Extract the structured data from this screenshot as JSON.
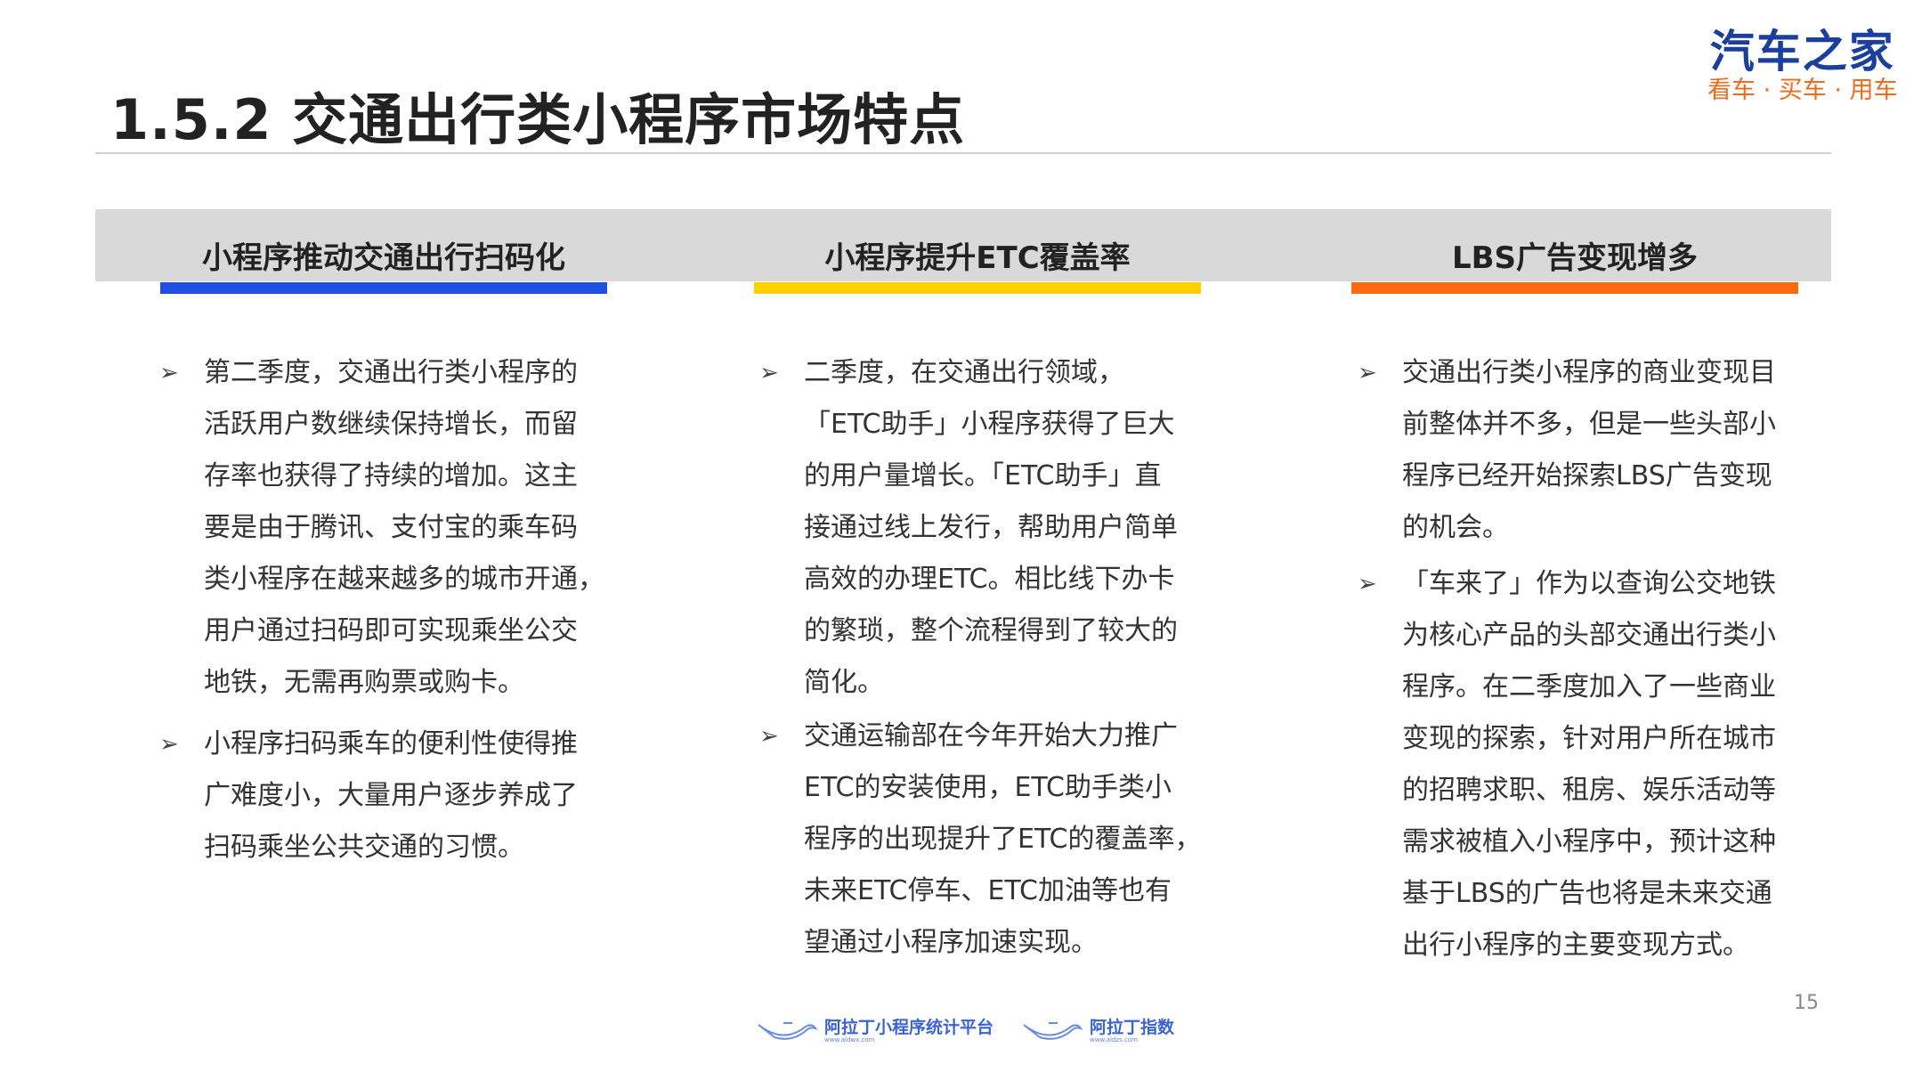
{
  "title": "1.5.2 交通出行类小程序市场特点",
  "logo": {
    "main": "汽车之家",
    "sub": "看车 · 买车 · 用车"
  },
  "columns": [
    {
      "heading": "小程序推动交通出行扫码化",
      "accent": "#1e4fe0",
      "bullets": [
        {
          "lines": [
            "第二季度，交通出行类小程序的",
            "活跃用户数继续保持增长，而留",
            "存率也获得了持续的增加。这主",
            "要是由于腾讯、支付宝的乘车码",
            "类小程序在越来越多的城市开通，",
            "用户通过扫码即可实现乘坐公交",
            "地铁，无需再购票或购卡。"
          ]
        },
        {
          "lines": [
            "小程序扫码乘车的便利性使得推",
            "广难度小，大量用户逐步养成了",
            "扫码乘坐公共交通的习惯。"
          ]
        }
      ]
    },
    {
      "heading": "小程序提升ETC覆盖率",
      "accent": "#ffd000",
      "bullets": [
        {
          "lines": [
            "二季度，在交通出行领域，",
            "「ETC助手」小程序获得了巨大",
            "的用户量增长。「ETC助手」直",
            "接通过线上发行，帮助用户简单",
            "高效的办理ETC。相比线下办卡",
            "的繁琐，整个流程得到了较大的",
            "简化。"
          ]
        },
        {
          "lines": [
            "交通运输部在今年开始大力推广",
            "ETC的安装使用，ETC助手类小",
            "程序的出现提升了ETC的覆盖率，",
            "未来ETC停车、ETC加油等也有",
            "望通过小程序加速实现。"
          ]
        }
      ]
    },
    {
      "heading": "LBS广告变现增多",
      "accent": "#ff6a10",
      "bullets": [
        {
          "lines": [
            "交通出行类小程序的商业变现目",
            "前整体并不多，但是一些头部小",
            "程序已经开始探索LBS广告变现",
            "的机会。"
          ]
        },
        {
          "lines": [
            "「车来了」作为以查询公交地铁",
            "为核心产品的头部交通出行类小",
            "程序。在二季度加入了一些商业",
            "变现的探索，针对用户所在城市",
            "的招聘求职、租房、娱乐活动等",
            "需求被植入小程序中，预计这种",
            "基于LBS的广告也将是未来交通",
            "出行小程序的主要变现方式。"
          ]
        }
      ]
    }
  ],
  "bullet_glyph": "➢",
  "page_number": "15",
  "footer": [
    {
      "name": "阿拉丁小程序统计平台",
      "url": "www.aldwx.com"
    },
    {
      "name": "阿拉丁指数",
      "url": "www.aldzs.com"
    }
  ]
}
